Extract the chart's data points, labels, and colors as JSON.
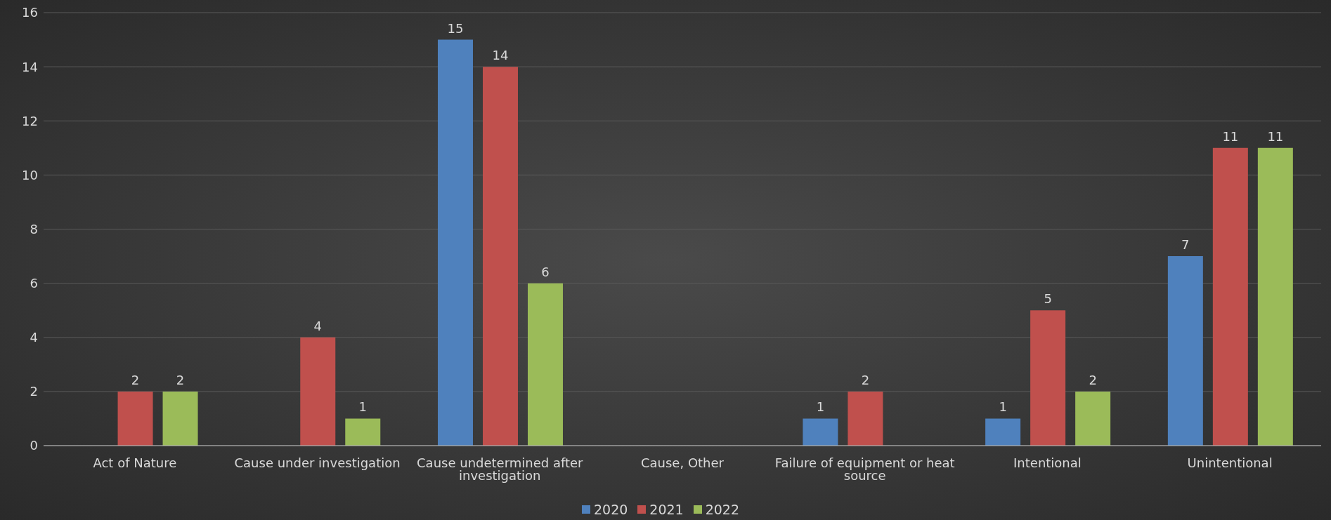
{
  "chart_data": {
    "type": "bar",
    "categories": [
      "Act of Nature",
      "Cause under investigation",
      "Cause undetermined after investigation",
      "Cause, Other",
      "Failure of equipment or heat source",
      "Intentional",
      "Unintentional"
    ],
    "series": [
      {
        "name": "2020",
        "color": "#4f81bd",
        "values": [
          null,
          null,
          15,
          null,
          1,
          1,
          7
        ]
      },
      {
        "name": "2021",
        "color": "#c0504d",
        "values": [
          2,
          4,
          14,
          null,
          2,
          5,
          11
        ]
      },
      {
        "name": "2022",
        "color": "#9bbb59",
        "values": [
          2,
          1,
          6,
          null,
          null,
          2,
          11
        ]
      }
    ],
    "ylim": [
      0,
      16
    ],
    "yticks": [
      0,
      2,
      4,
      6,
      8,
      10,
      12,
      14,
      16
    ],
    "grid": "y",
    "legend": "bottom",
    "data_labels": true
  }
}
